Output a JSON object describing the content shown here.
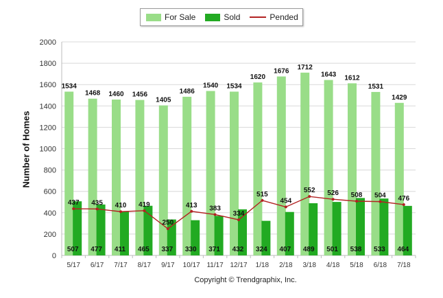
{
  "chart_data": {
    "type": "bar",
    "categories": [
      "5/17",
      "6/17",
      "7/17",
      "8/17",
      "9/17",
      "10/17",
      "11/17",
      "12/17",
      "1/18",
      "2/18",
      "3/18",
      "4/18",
      "5/18",
      "6/18",
      "7/18"
    ],
    "series": [
      {
        "name": "For Sale",
        "type": "bar",
        "color": "#99dd88",
        "values": [
          1534,
          1468,
          1460,
          1456,
          1405,
          1486,
          1540,
          1534,
          1620,
          1676,
          1712,
          1643,
          1612,
          1531,
          1429
        ]
      },
      {
        "name": "Sold",
        "type": "bar",
        "color": "#22aa22",
        "values": [
          507,
          477,
          411,
          465,
          337,
          330,
          371,
          432,
          324,
          407,
          489,
          501,
          538,
          533,
          464
        ]
      },
      {
        "name": "Pended",
        "type": "line",
        "color": "#b22222",
        "values": [
          437,
          435,
          410,
          419,
          250,
          413,
          383,
          334,
          515,
          454,
          552,
          526,
          508,
          504,
          476
        ]
      }
    ],
    "ylabel": "Number of Homes",
    "xlabel": "",
    "ylim": [
      0,
      2000
    ],
    "yticks": [
      0,
      200,
      400,
      600,
      800,
      1000,
      1200,
      1400,
      1600,
      1800,
      2000
    ],
    "grid": true,
    "legend_position": "top-center",
    "copyright": "Copyright © Trendgraphix, Inc."
  }
}
